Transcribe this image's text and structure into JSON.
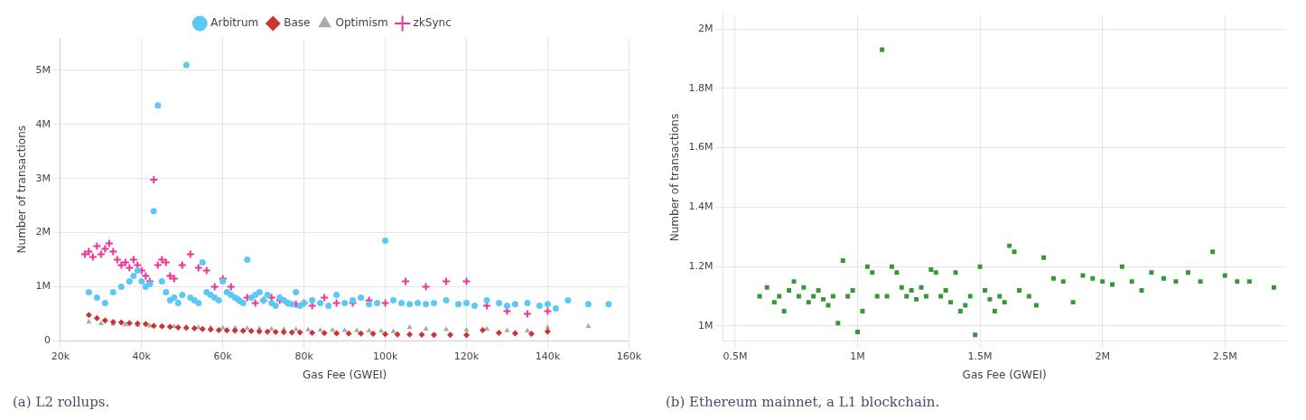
{
  "chart_data": [
    {
      "type": "scatter",
      "title": "(a) L2 rollups.",
      "xlabel": "Gas Fee (GWEI)",
      "ylabel": "Number of transactions",
      "xlim": [
        20000,
        160000
      ],
      "ylim": [
        0,
        5600000
      ],
      "xticks": [
        {
          "value": 20000,
          "label": "20k"
        },
        {
          "value": 40000,
          "label": "40k"
        },
        {
          "value": 60000,
          "label": "60k"
        },
        {
          "value": 80000,
          "label": "80k"
        },
        {
          "value": 100000,
          "label": "100k"
        },
        {
          "value": 120000,
          "label": "120k"
        },
        {
          "value": 140000,
          "label": "140k"
        },
        {
          "value": 160000,
          "label": "160k"
        }
      ],
      "yticks": [
        0,
        {
          "value": 1000000,
          "label": "1M"
        },
        {
          "value": 2000000,
          "label": "2M"
        },
        {
          "value": 3000000,
          "label": "3M"
        },
        {
          "value": 4000000,
          "label": "4M"
        },
        {
          "value": 5000000,
          "label": "5M"
        }
      ],
      "grid": true,
      "legend": "top",
      "series": [
        {
          "name": "Arbitrum",
          "color": "#5BC8F5",
          "marker": "circle",
          "x": [
            27000,
            29000,
            31000,
            33000,
            35000,
            37000,
            38000,
            39000,
            40000,
            41000,
            42000,
            43000,
            44000,
            45000,
            46000,
            47000,
            48000,
            49000,
            50000,
            51000,
            52000,
            53000,
            54000,
            55000,
            56000,
            57000,
            58000,
            59000,
            60000,
            61000,
            62000,
            63000,
            64000,
            65000,
            66000,
            67000,
            68000,
            69000,
            70000,
            71000,
            72000,
            73000,
            74000,
            75000,
            76000,
            77000,
            78000,
            79000,
            80000,
            82000,
            84000,
            86000,
            88000,
            90000,
            92000,
            94000,
            96000,
            98000,
            100000,
            102000,
            104000,
            106000,
            108000,
            110000,
            112000,
            115000,
            118000,
            120000,
            122000,
            125000,
            128000,
            130000,
            132000,
            135000,
            138000,
            140000,
            142000,
            145000,
            150000,
            155000
          ],
          "values": [
            900000,
            800000,
            700000,
            900000,
            1000000,
            1100000,
            1200000,
            1300000,
            1100000,
            1000000,
            1050000,
            2400000,
            4350000,
            1100000,
            900000,
            750000,
            800000,
            700000,
            850000,
            5100000,
            800000,
            750000,
            700000,
            1450000,
            900000,
            850000,
            800000,
            750000,
            1100000,
            900000,
            850000,
            800000,
            750000,
            700000,
            1500000,
            800000,
            850000,
            900000,
            750000,
            850000,
            700000,
            650000,
            800000,
            750000,
            700000,
            680000,
            900000,
            650000,
            700000,
            750000,
            700000,
            650000,
            850000,
            700000,
            750000,
            800000,
            680000,
            700000,
            1850000,
            750000,
            700000,
            680000,
            700000,
            680000,
            700000,
            750000,
            680000,
            700000,
            650000,
            750000,
            700000,
            650000,
            680000,
            700000,
            650000,
            680000,
            600000,
            750000,
            680000,
            680000
          ]
        },
        {
          "name": "Base",
          "color": "#CC3333",
          "marker": "diamond",
          "x": [
            27000,
            29000,
            31000,
            33000,
            35000,
            37000,
            39000,
            41000,
            43000,
            45000,
            47000,
            49000,
            51000,
            53000,
            55000,
            57000,
            59000,
            61000,
            63000,
            65000,
            67000,
            69000,
            71000,
            73000,
            75000,
            77000,
            79000,
            82000,
            85000,
            88000,
            91000,
            94000,
            97000,
            100000,
            103000,
            106000,
            109000,
            112000,
            116000,
            120000,
            124000,
            128000,
            132000,
            136000,
            140000
          ],
          "values": [
            480000,
            420000,
            380000,
            350000,
            340000,
            330000,
            320000,
            310000,
            280000,
            270000,
            260000,
            250000,
            240000,
            230000,
            220000,
            210000,
            200000,
            195000,
            190000,
            185000,
            180000,
            175000,
            170000,
            165000,
            160000,
            158000,
            155000,
            150000,
            145000,
            140000,
            138000,
            135000,
            130000,
            125000,
            120000,
            118000,
            115000,
            112000,
            110000,
            108000,
            200000,
            150000,
            140000,
            130000,
            175000
          ]
        },
        {
          "name": "Optimism",
          "color": "#AAAAAA",
          "marker": "triangle",
          "x": [
            27000,
            30000,
            33000,
            36000,
            39000,
            42000,
            45000,
            48000,
            51000,
            54000,
            57000,
            60000,
            63000,
            66000,
            69000,
            72000,
            75000,
            78000,
            81000,
            84000,
            87000,
            90000,
            93000,
            96000,
            99000,
            102000,
            106000,
            110000,
            115000,
            120000,
            125000,
            130000,
            135000,
            140000,
            150000
          ],
          "values": [
            350000,
            320000,
            310000,
            300000,
            290000,
            280000,
            270000,
            265000,
            255000,
            250000,
            245000,
            240000,
            235000,
            230000,
            225000,
            220000,
            215000,
            210000,
            205000,
            200000,
            198000,
            195000,
            190000,
            185000,
            180000,
            175000,
            250000,
            220000,
            210000,
            200000,
            220000,
            190000,
            185000,
            250000,
            270000
          ]
        },
        {
          "name": "zkSync",
          "color": "#EE3399",
          "marker": "plus",
          "x": [
            26000,
            27000,
            28000,
            29000,
            30000,
            31000,
            32000,
            33000,
            34000,
            35000,
            36000,
            37000,
            38000,
            39000,
            40000,
            41000,
            42000,
            43000,
            44000,
            45000,
            46000,
            47000,
            48000,
            50000,
            52000,
            54000,
            56000,
            58000,
            60000,
            62000,
            64000,
            66000,
            68000,
            70000,
            72000,
            74000,
            76000,
            78000,
            80000,
            82000,
            85000,
            88000,
            92000,
            96000,
            100000,
            105000,
            110000,
            115000,
            120000,
            125000,
            130000,
            135000,
            140000
          ],
          "values": [
            1600000,
            1650000,
            1550000,
            1750000,
            1600000,
            1700000,
            1800000,
            1650000,
            1500000,
            1400000,
            1450000,
            1350000,
            1500000,
            1400000,
            1300000,
            1200000,
            1100000,
            2980000,
            1400000,
            1500000,
            1450000,
            1200000,
            1150000,
            1400000,
            1600000,
            1350000,
            1300000,
            1000000,
            1150000,
            1000000,
            750000,
            800000,
            700000,
            750000,
            800000,
            750000,
            700000,
            680000,
            700000,
            650000,
            800000,
            700000,
            700000,
            750000,
            700000,
            1100000,
            1000000,
            1100000,
            1100000,
            650000,
            550000,
            500000,
            550000
          ]
        }
      ]
    },
    {
      "type": "scatter",
      "title": "(b) Ethereum mainnet, a L1 blockchain.",
      "xlabel": "Gas Fee (GWEI)",
      "ylabel": "Number of transactions",
      "xlim": [
        450000,
        2750000
      ],
      "ylim": [
        950000,
        2050000
      ],
      "xticks": [
        {
          "value": 500000,
          "label": "0.5M"
        },
        {
          "value": 1000000,
          "label": "1M"
        },
        {
          "value": 1500000,
          "label": "1.5M"
        },
        {
          "value": 2000000,
          "label": "2M"
        },
        {
          "value": 2500000,
          "label": "2.5M"
        }
      ],
      "yticks": [
        {
          "value": 1000000,
          "label": "1M"
        },
        {
          "value": 1200000,
          "label": "1.2M"
        },
        {
          "value": 1400000,
          "label": "1.4M"
        },
        {
          "value": 1600000,
          "label": "1.6M"
        },
        {
          "value": 1800000,
          "label": "1.8M"
        },
        {
          "value": 2000000,
          "label": "2M"
        }
      ],
      "grid": true,
      "series": [
        {
          "color": "#339933",
          "marker": "square",
          "x": [
            600000,
            630000,
            660000,
            680000,
            700000,
            720000,
            740000,
            760000,
            780000,
            800000,
            820000,
            840000,
            860000,
            880000,
            900000,
            920000,
            940000,
            960000,
            980000,
            1000000,
            1020000,
            1040000,
            1060000,
            1080000,
            1100000,
            1120000,
            1140000,
            1160000,
            1180000,
            1200000,
            1220000,
            1240000,
            1260000,
            1280000,
            1300000,
            1320000,
            1340000,
            1360000,
            1380000,
            1400000,
            1420000,
            1440000,
            1460000,
            1480000,
            1500000,
            1520000,
            1540000,
            1560000,
            1580000,
            1600000,
            1620000,
            1640000,
            1660000,
            1700000,
            1730000,
            1760000,
            1800000,
            1840000,
            1880000,
            1920000,
            1960000,
            2000000,
            2040000,
            2080000,
            2120000,
            2160000,
            2200000,
            2250000,
            2300000,
            2350000,
            2400000,
            2450000,
            2500000,
            2550000,
            2600000,
            2700000
          ],
          "values": [
            1100000,
            1130000,
            1080000,
            1100000,
            1050000,
            1120000,
            1150000,
            1100000,
            1130000,
            1080000,
            1100000,
            1120000,
            1090000,
            1070000,
            1100000,
            1010000,
            1220000,
            1100000,
            1120000,
            980000,
            1050000,
            1200000,
            1180000,
            1100000,
            1930000,
            1100000,
            1200000,
            1180000,
            1130000,
            1100000,
            1120000,
            1090000,
            1130000,
            1100000,
            1190000,
            1180000,
            1100000,
            1120000,
            1080000,
            1180000,
            1050000,
            1070000,
            1100000,
            970000,
            1200000,
            1120000,
            1090000,
            1050000,
            1100000,
            1080000,
            1270000,
            1250000,
            1120000,
            1100000,
            1070000,
            1230000,
            1160000,
            1150000,
            1080000,
            1170000,
            1160000,
            1150000,
            1140000,
            1200000,
            1150000,
            1120000,
            1180000,
            1160000,
            1150000,
            1180000,
            1150000,
            1250000,
            1170000,
            1150000,
            1150000,
            1130000
          ]
        }
      ]
    }
  ]
}
